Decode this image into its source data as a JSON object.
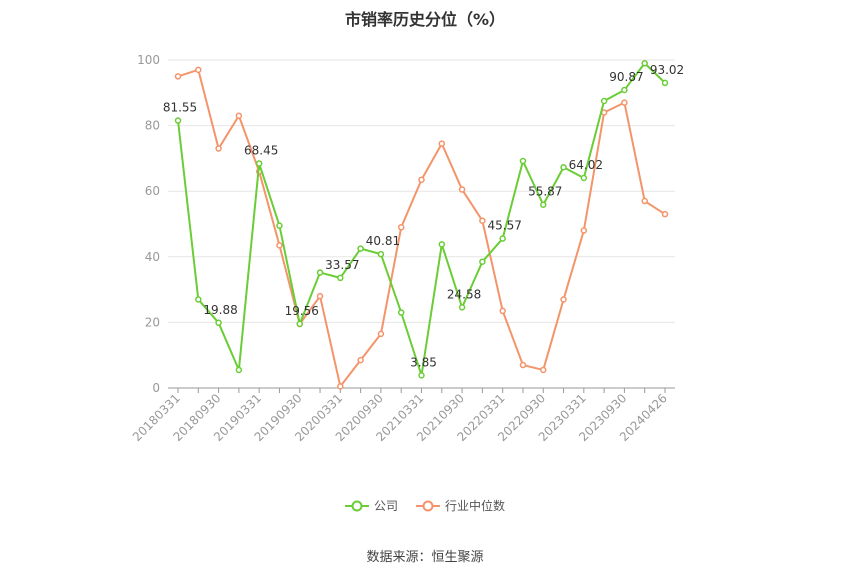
{
  "title": "市销率历史分位（%）",
  "source": "数据来源：恒生聚源",
  "colors": {
    "company": "#6acd36",
    "industry": "#f4946a",
    "grid": "#e6e6e6",
    "axis": "#999999"
  },
  "chart_data": {
    "type": "line",
    "title": "市销率历史分位（%）",
    "ylim": [
      0,
      100
    ],
    "yticks": [
      0,
      20,
      40,
      60,
      80,
      100
    ],
    "grid": true,
    "legend_position": "bottom",
    "x_tick_labels": [
      "20180331",
      "20180930",
      "20190331",
      "20190930",
      "20200331",
      "20200930",
      "20210331",
      "20210930",
      "20220331",
      "20220930",
      "20230331",
      "20230930",
      "20240426"
    ],
    "x": [
      "20180331",
      "20180630",
      "20180930",
      "20181231",
      "20190331",
      "20190630",
      "20190930",
      "20191231",
      "20200331",
      "20200630",
      "20200930",
      "20201231",
      "20210331",
      "20210630",
      "20210930",
      "20211231",
      "20220331",
      "20220630",
      "20220930",
      "20221231",
      "20230331",
      "20230630",
      "20230930",
      "20231231",
      "20240426"
    ],
    "series": [
      {
        "name": "公司",
        "values": [
          81.55,
          27,
          19.88,
          5.5,
          68.45,
          49.5,
          19.56,
          35.2,
          33.57,
          42.5,
          40.81,
          23,
          3.85,
          43.8,
          24.58,
          38.5,
          45.57,
          69.2,
          55.87,
          67.3,
          64.02,
          87.5,
          90.87,
          99,
          93.02
        ]
      },
      {
        "name": "行业中位数",
        "values": [
          95,
          97,
          73,
          83,
          66,
          43.5,
          19.5,
          28,
          0.5,
          8.5,
          16.5,
          49,
          63.5,
          74.5,
          60.5,
          51,
          23.5,
          7,
          5.5,
          27,
          48,
          84,
          87,
          57,
          53
        ]
      }
    ],
    "data_labels": [
      {
        "series": 0,
        "index": 0,
        "text": "81.55"
      },
      {
        "series": 0,
        "index": 2,
        "text": "19.88"
      },
      {
        "series": 0,
        "index": 4,
        "text": "68.45"
      },
      {
        "series": 0,
        "index": 6,
        "text": "19.56"
      },
      {
        "series": 0,
        "index": 8,
        "text": "33.57"
      },
      {
        "series": 0,
        "index": 10,
        "text": "40.81"
      },
      {
        "series": 0,
        "index": 12,
        "text": "3.85"
      },
      {
        "series": 0,
        "index": 14,
        "text": "24.58"
      },
      {
        "series": 0,
        "index": 16,
        "text": "45.57"
      },
      {
        "series": 0,
        "index": 18,
        "text": "55.87"
      },
      {
        "series": 0,
        "index": 20,
        "text": "64.02"
      },
      {
        "series": 0,
        "index": 22,
        "text": "90.87"
      },
      {
        "series": 0,
        "index": 24,
        "text": "93.02"
      }
    ]
  }
}
